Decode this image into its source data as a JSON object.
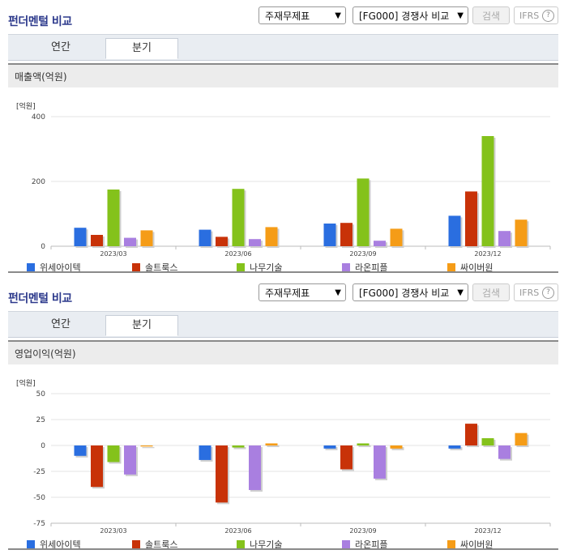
{
  "panels": [
    {
      "title": "펀더멘털 비교",
      "statement_select": "주재무제표",
      "compare_select": "[FG000] 경쟁사 비교",
      "search_label": "검색",
      "ifrs_label": "IFRS",
      "tabs": [
        "연간",
        "분기"
      ],
      "active_tab": 1,
      "chart_title": "매출액(억원)"
    },
    {
      "title": "펀더멘털 비교",
      "statement_select": "주재무제표",
      "compare_select": "[FG000] 경쟁사 비교",
      "search_label": "검색",
      "ifrs_label": "IFRS",
      "tabs": [
        "연간",
        "분기"
      ],
      "active_tab": 1,
      "chart_title": "영업이익(억원)"
    }
  ],
  "colors": {
    "위세아이텍": "#2a6ee0",
    "솔트룩스": "#c83208",
    "나무기술": "#84c21b",
    "라온피플": "#a97fe0",
    "싸이버원": "#f59c17"
  },
  "chart_data": [
    {
      "type": "bar",
      "title": "매출액(억원)",
      "unit_label": "[억원]",
      "categories": [
        "2023/03",
        "2023/06",
        "2023/09",
        "2023/12"
      ],
      "ylim": [
        0,
        400
      ],
      "yticks": [
        0,
        200,
        400
      ],
      "grid": true,
      "legend": "bottom",
      "series": [
        {
          "name": "위세아이텍",
          "values": [
            57,
            51,
            70,
            94
          ]
        },
        {
          "name": "솔트룩스",
          "values": [
            35,
            29,
            72,
            169
          ]
        },
        {
          "name": "나무기술",
          "values": [
            175,
            177,
            209,
            340
          ]
        },
        {
          "name": "라온피플",
          "values": [
            26,
            22,
            17,
            47
          ]
        },
        {
          "name": "싸이버원",
          "values": [
            49,
            59,
            54,
            82
          ]
        }
      ]
    },
    {
      "type": "bar",
      "title": "영업이익(억원)",
      "unit_label": "[억원]",
      "categories": [
        "2023/03",
        "2023/06",
        "2023/09",
        "2023/12"
      ],
      "ylim": [
        -75,
        50
      ],
      "yticks": [
        -75,
        -50,
        -25,
        0,
        25,
        50
      ],
      "grid": true,
      "legend": "bottom",
      "series": [
        {
          "name": "위세아이텍",
          "values": [
            -10,
            -14,
            -3,
            -3
          ]
        },
        {
          "name": "솔트룩스",
          "values": [
            -40,
            -55,
            -23,
            21
          ]
        },
        {
          "name": "나무기술",
          "values": [
            -16,
            -2,
            2,
            7
          ]
        },
        {
          "name": "라온피플",
          "values": [
            -28,
            -43,
            -32,
            -13
          ]
        },
        {
          "name": "싸이버원",
          "values": [
            -1,
            2,
            -3,
            12
          ]
        }
      ]
    }
  ]
}
